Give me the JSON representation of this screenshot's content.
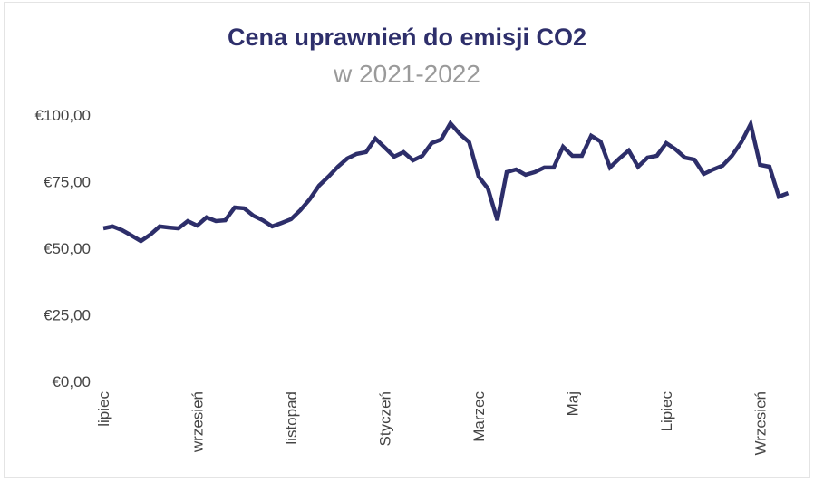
{
  "chart_data": {
    "type": "line",
    "title": "Cena uprawnień do emisji CO2",
    "subtitle": "w 2021-2022",
    "xlabel": "",
    "ylabel": "",
    "ylim": [
      0,
      100
    ],
    "y_ticks": [
      "€0,00",
      "€25,00",
      "€50,00",
      "€75,00",
      "€100,00"
    ],
    "y_tick_values": [
      0,
      25,
      50,
      75,
      100
    ],
    "x_tick_labels": [
      "lipiec",
      "wrzesień",
      "listopad",
      "Styczeń",
      "Marzec",
      "Maj",
      "Lipiec",
      "Wrzesień"
    ],
    "x_tick_every": 10,
    "grid": false,
    "line_color": "#2d2e6a",
    "series": [
      {
        "values": [
          57.5,
          58.2,
          56.8,
          54.8,
          52.7,
          55.1,
          58.2,
          57.8,
          57.5,
          60.2,
          58.5,
          61.6,
          60.2,
          60.5,
          65.3,
          65.0,
          62.2,
          60.5,
          58.2,
          59.5,
          60.9,
          64.3,
          68.4,
          73.5,
          76.9,
          80.6,
          83.7,
          85.4,
          86.1,
          91.2,
          87.8,
          84.4,
          86.1,
          83.0,
          84.7,
          89.5,
          90.8,
          96.9,
          92.9,
          89.8,
          76.9,
          72.4,
          60.5,
          78.6,
          79.6,
          77.6,
          78.6,
          80.3,
          80.3,
          88.1,
          84.7,
          84.7,
          92.2,
          90.1,
          80.3,
          83.7,
          86.7,
          80.6,
          84.0,
          84.7,
          89.5,
          87.1,
          84.0,
          83.3,
          77.9,
          79.6,
          81.0,
          84.7,
          89.8,
          96.6,
          81.3,
          80.6,
          69.4,
          70.7
        ]
      }
    ]
  }
}
